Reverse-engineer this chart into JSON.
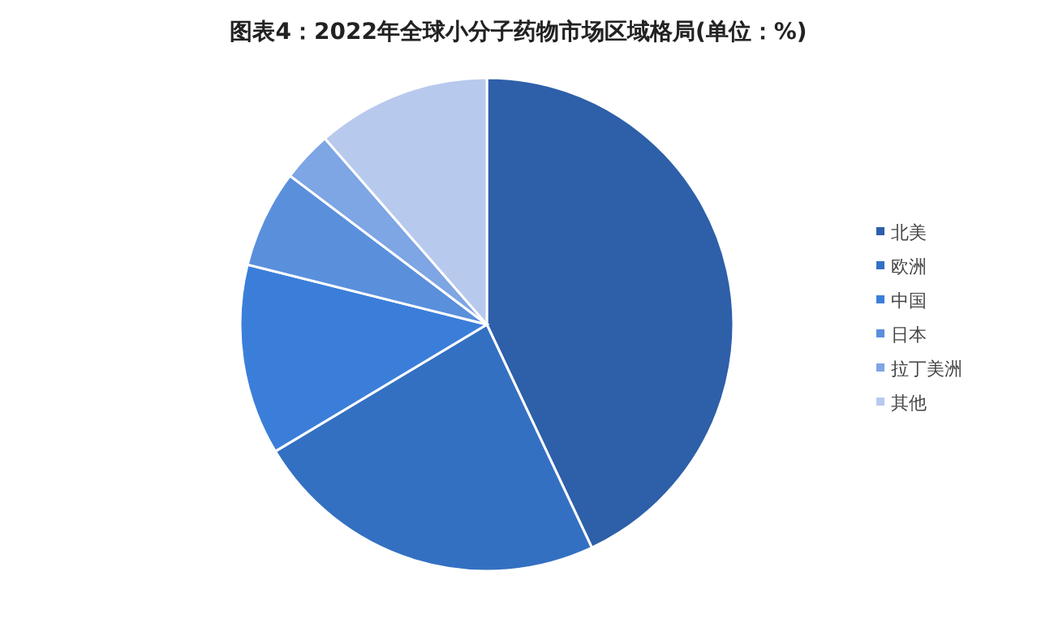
{
  "chart_data": {
    "type": "pie",
    "title": "图表4：2022年全球小分子药物市场区域格局(单位：%)",
    "categories": [
      "北美",
      "欧洲",
      "中国",
      "日本",
      "拉丁美洲",
      "其他"
    ],
    "values": [
      43,
      23.4,
      12.5,
      6.4,
      3.3,
      11.4
    ],
    "colors": [
      "#2e5fa9",
      "#3470c2",
      "#3b7ed9",
      "#5a8fdc",
      "#7ea5e4",
      "#b8c9ee"
    ],
    "legend": "right"
  }
}
